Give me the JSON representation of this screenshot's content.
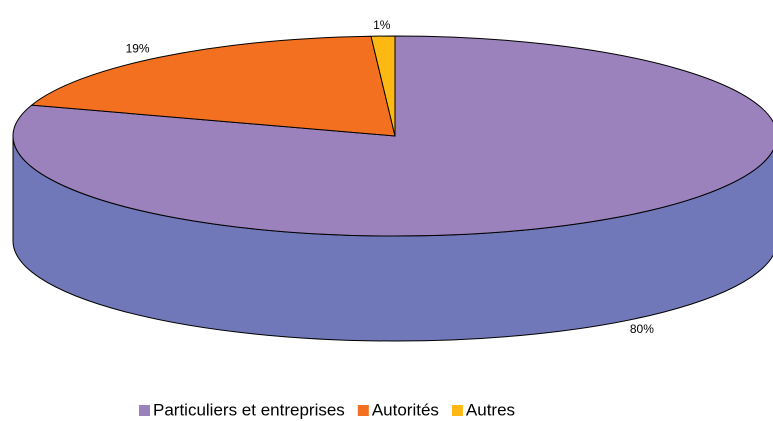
{
  "chart_data": {
    "type": "pie3d",
    "categories": [
      "Particuliers et entreprises",
      "Autorités",
      "Autres"
    ],
    "values": [
      80,
      19,
      1
    ],
    "value_labels": [
      "80%",
      "19%",
      "1%"
    ],
    "colors": [
      "#9b82bd",
      "#f37021",
      "#fdb813"
    ],
    "side_colors": [
      "#7178b9",
      "#c85a18",
      "#d09a10"
    ],
    "legend": "bottom"
  }
}
